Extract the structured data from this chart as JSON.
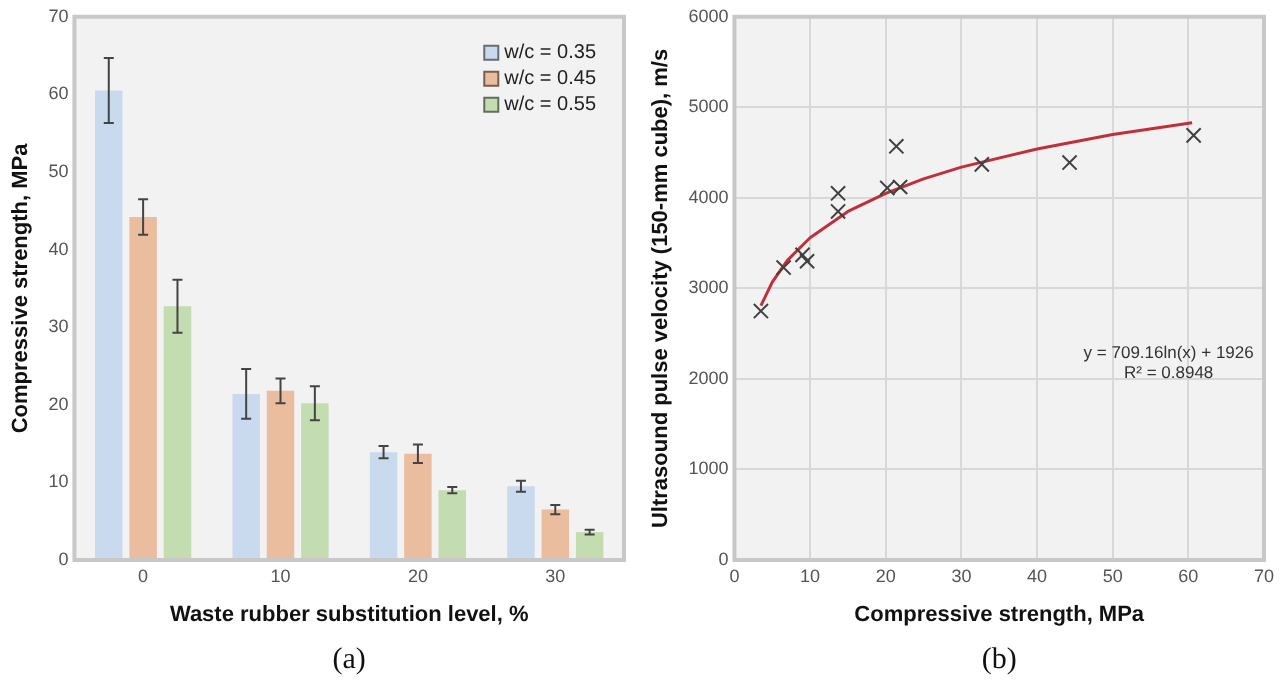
{
  "chart_data": [
    {
      "type": "bar",
      "xlabel": "Waste rubber substitution level, %",
      "ylabel": "Compressive strength, MPa",
      "categories": [
        "0",
        "10",
        "20",
        "30"
      ],
      "series": [
        {
          "name": "w/c = 0.35",
          "color": "#c9d9ee",
          "values": [
            60.5,
            21.4,
            13.9,
            9.5
          ],
          "errors": [
            4.2,
            3.2,
            0.8,
            0.7
          ]
        },
        {
          "name": "w/c = 0.45",
          "color": "#ebbd9f",
          "values": [
            44.2,
            21.8,
            13.7,
            6.5
          ],
          "errors": [
            2.3,
            1.6,
            1.2,
            0.6
          ]
        },
        {
          "name": "w/c = 0.55",
          "color": "#c3ddb0",
          "values": [
            32.7,
            20.2,
            9.0,
            3.6
          ],
          "errors": [
            3.4,
            2.2,
            0.4,
            0.3
          ]
        }
      ],
      "ylim": [
        0,
        70
      ],
      "yticks": [
        0,
        10,
        20,
        30,
        40,
        50,
        60,
        70
      ],
      "grid": false,
      "legend": "top right",
      "annotations": [
        "(a)"
      ]
    },
    {
      "type": "scatter",
      "xlabel": "Compressive strength, MPa",
      "ylabel": "Ultrasound pulse velocity (150-mm cube), m/s",
      "marker": "cross",
      "series": [
        {
          "color": "#404040",
          "x": [
            3.5,
            6.5,
            9.0,
            9.6,
            13.7,
            13.7,
            20.2,
            21.4,
            21.9,
            32.7,
            44.3,
            60.7
          ],
          "values": [
            2750,
            3230,
            3370,
            3300,
            4050,
            3850,
            4110,
            4570,
            4120,
            4370,
            4390,
            4690
          ]
        },
        {
          "type": "line",
          "marker": "none",
          "color": "#c0303a",
          "x": [
            3.5,
            5,
            7,
            10,
            15,
            20,
            25,
            30,
            40,
            50,
            60.5
          ],
          "values": [
            2810,
            3070,
            3310,
            3560,
            3850,
            4050,
            4210,
            4340,
            4540,
            4700,
            4830
          ]
        }
      ],
      "xlim": [
        0,
        70
      ],
      "xticks": [
        0,
        10,
        20,
        30,
        40,
        50,
        60,
        70
      ],
      "ylim": [
        0,
        6000
      ],
      "yticks": [
        0,
        1000,
        2000,
        3000,
        4000,
        5000,
        6000
      ],
      "grid": true,
      "legend": false,
      "annotations": [
        "y = 709.16ln(x) + 1926",
        "R² = 0.8948",
        "(b)"
      ]
    }
  ]
}
